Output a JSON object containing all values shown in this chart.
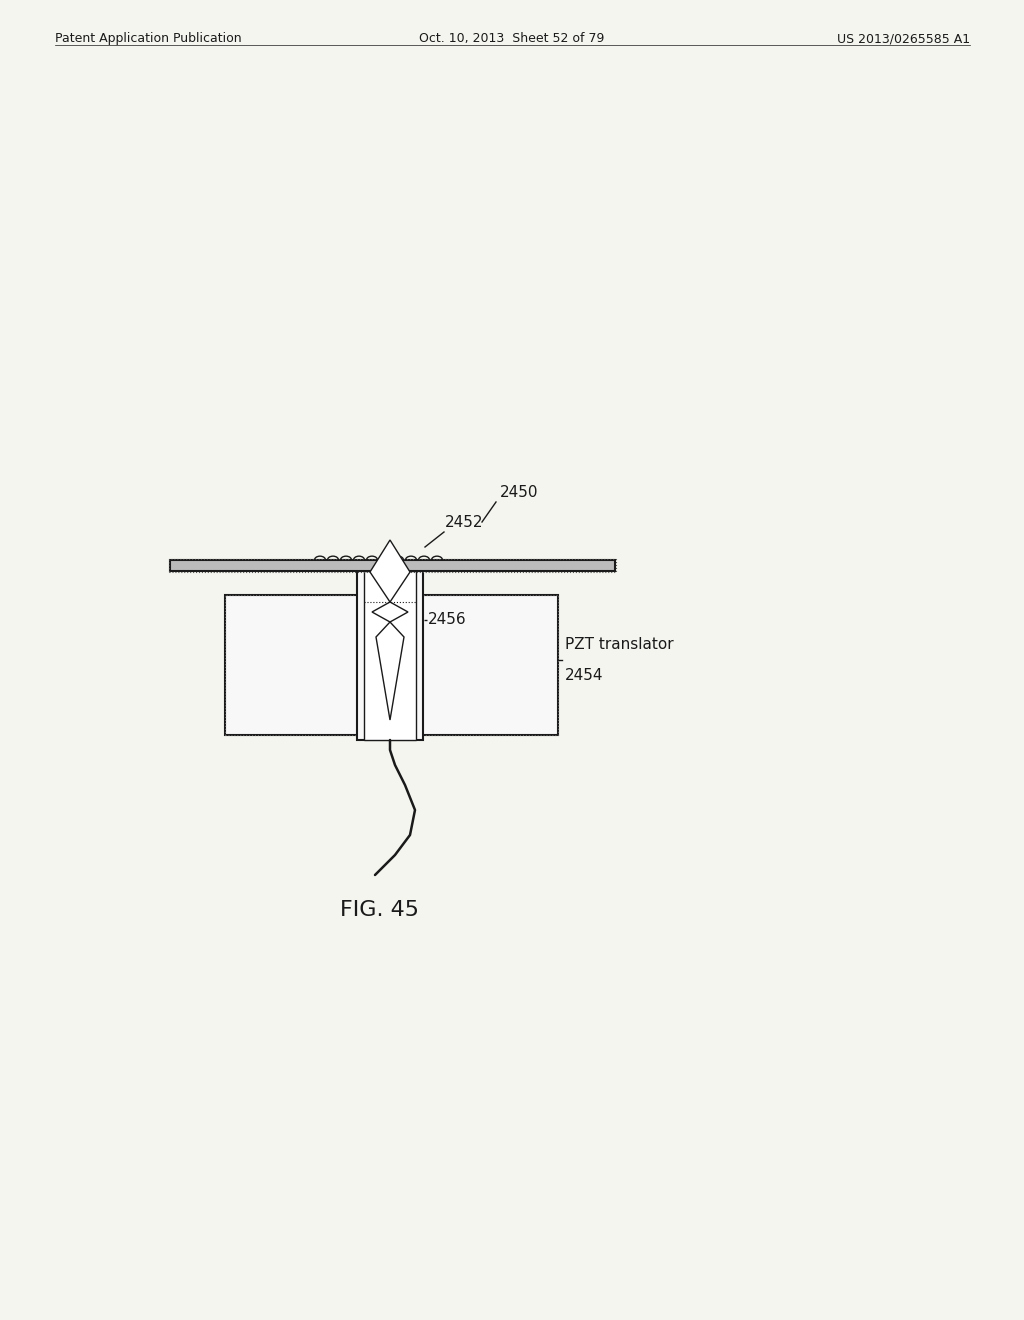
{
  "bg_color": "#f5f5f0",
  "header_left": "Patent Application Publication",
  "header_mid": "Oct. 10, 2013  Sheet 52 of 79",
  "header_right": "US 2013/0265585 A1",
  "fig_label": "FIG. 45",
  "label_2450": "2450",
  "label_2452": "2452",
  "label_2454": "2454",
  "label_2456": "2456",
  "label_pzt": "PZT translator",
  "line_color": "#1a1a1a",
  "fill_white": "#ffffff",
  "fill_light": "#f0f0f0"
}
